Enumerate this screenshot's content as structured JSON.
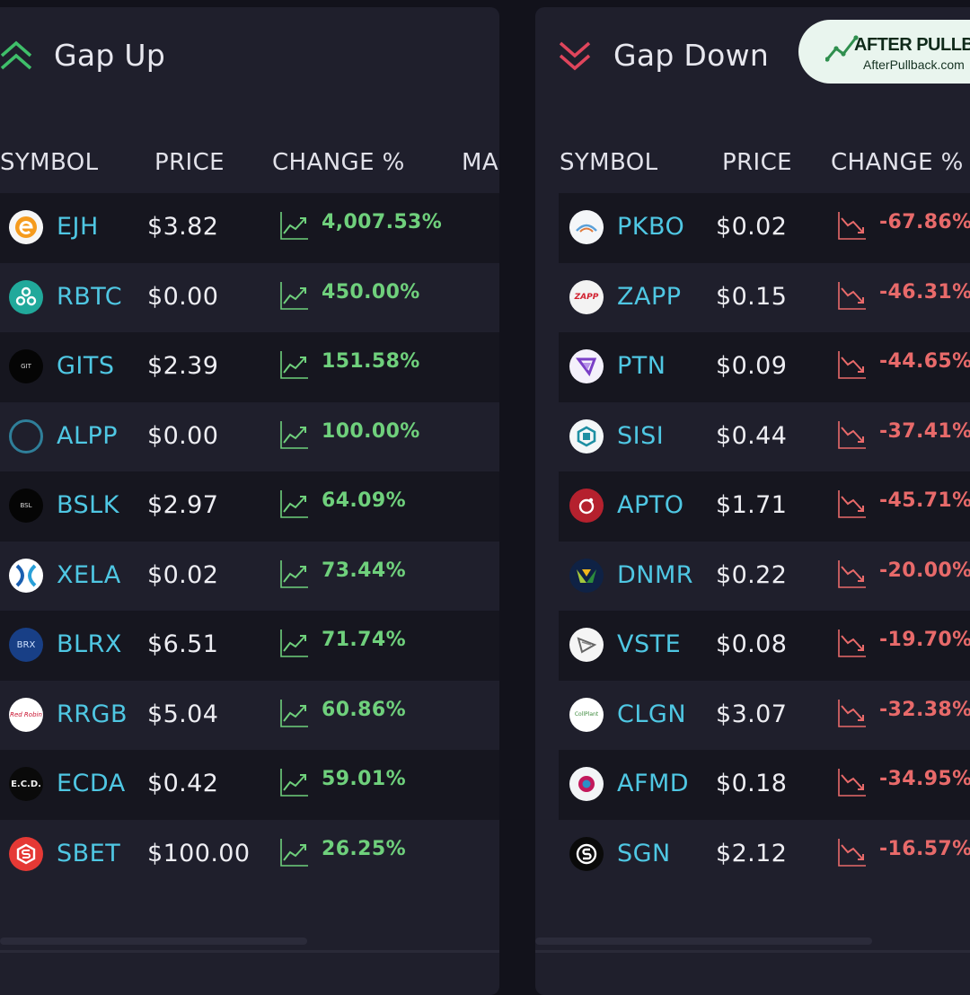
{
  "gap_up": {
    "title": "Gap Up",
    "columns": [
      "SYMBOL",
      "PRICE",
      "CHANGE %",
      "MA"
    ],
    "rows": [
      {
        "symbol": "EJH",
        "price": "$3.82",
        "change": "4,007.53%",
        "logo": "ejh-logo"
      },
      {
        "symbol": "RBTC",
        "price": "$0.00",
        "change": "450.00%",
        "logo": "rbtc-logo"
      },
      {
        "symbol": "GITS",
        "price": "$2.39",
        "change": "151.58%",
        "logo": "gits-logo",
        "logo_text": "GIT"
      },
      {
        "symbol": "ALPP",
        "price": "$0.00",
        "change": "100.00%",
        "logo": "alpp-logo"
      },
      {
        "symbol": "BSLK",
        "price": "$2.97",
        "change": "64.09%",
        "logo": "bslk-logo",
        "logo_text": "BSL"
      },
      {
        "symbol": "XELA",
        "price": "$0.02",
        "change": "73.44%",
        "logo": "xela-logo"
      },
      {
        "symbol": "BLRX",
        "price": "$6.51",
        "change": "71.74%",
        "logo": "blrx-logo",
        "logo_text": "BRX"
      },
      {
        "symbol": "RRGB",
        "price": "$5.04",
        "change": "60.86%",
        "logo": "rrgb-logo",
        "logo_text": "Red Robin"
      },
      {
        "symbol": "ECDA",
        "price": "$0.42",
        "change": "59.01%",
        "logo": "ecda-logo",
        "logo_text": "E.C.D."
      },
      {
        "symbol": "SBET",
        "price": "$100.00",
        "change": "26.25%",
        "logo": "sbet-logo"
      }
    ]
  },
  "gap_down": {
    "title": "Gap Down",
    "columns": [
      "SYMBOL",
      "PRICE",
      "CHANGE %"
    ],
    "rows": [
      {
        "symbol": "PKBO",
        "price": "$0.02",
        "change": "-67.86%",
        "logo": "pkbo-logo"
      },
      {
        "symbol": "ZAPP",
        "price": "$0.15",
        "change": "-46.31%",
        "logo": "zapp-logo",
        "logo_text": "ZAPP"
      },
      {
        "symbol": "PTN",
        "price": "$0.09",
        "change": "-44.65%",
        "logo": "ptn-logo"
      },
      {
        "symbol": "SISI",
        "price": "$0.44",
        "change": "-37.41%",
        "logo": "sisi-logo"
      },
      {
        "symbol": "APTO",
        "price": "$1.71",
        "change": "-45.71%",
        "logo": "apto-logo"
      },
      {
        "symbol": "DNMR",
        "price": "$0.22",
        "change": "-20.00%",
        "logo": "dnmr-logo"
      },
      {
        "symbol": "VSTE",
        "price": "$0.08",
        "change": "-19.70%",
        "logo": "vste-logo"
      },
      {
        "symbol": "CLGN",
        "price": "$3.07",
        "change": "-32.38%",
        "logo": "clgn-logo",
        "logo_text": "CollPlant"
      },
      {
        "symbol": "AFMD",
        "price": "$0.18",
        "change": "-34.95%",
        "logo": "afmd-logo"
      },
      {
        "symbol": "SGN",
        "price": "$2.12",
        "change": "-16.57%",
        "logo": "sgn-logo"
      }
    ]
  },
  "brand": {
    "name": "AFTER PULLBACK",
    "url": "AfterPullback.com"
  },
  "colors": {
    "up": "#6fd07c",
    "down": "#e86a6a",
    "symbol": "#4fc7e3",
    "panel": "#1f1f2c",
    "background": "#12121b"
  }
}
